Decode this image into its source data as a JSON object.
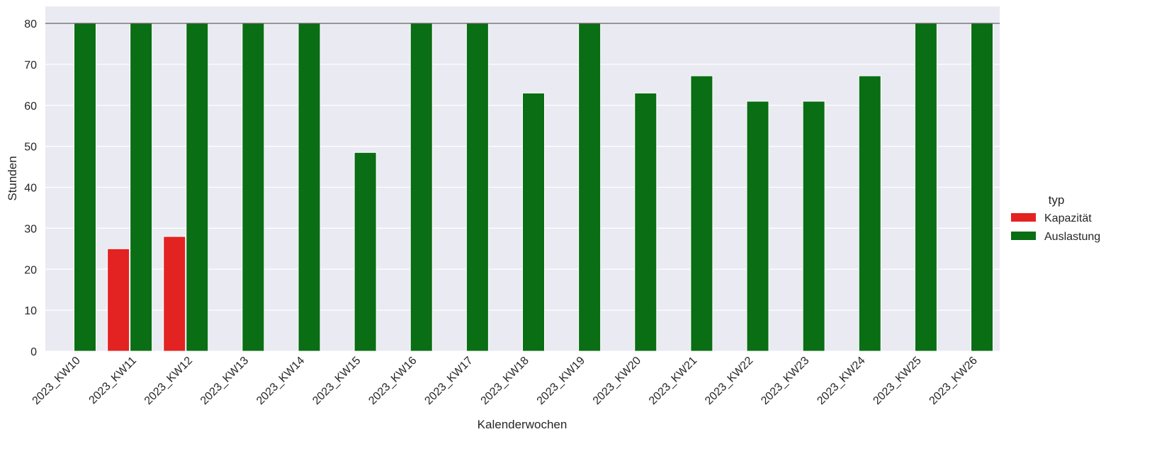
{
  "chart_data": {
    "type": "bar",
    "xlabel": "Kalenderwochen",
    "ylabel": "Stunden",
    "ylim": [
      0,
      84
    ],
    "yticks": [
      0,
      10,
      20,
      30,
      40,
      50,
      60,
      70,
      80
    ],
    "reference_line": 80,
    "grid": true,
    "legend": {
      "title": "typ",
      "placement": "right"
    },
    "categories": [
      "2023_KW10",
      "2023_KW11",
      "2023_KW12",
      "2023_KW13",
      "2023_KW14",
      "2023_KW15",
      "2023_KW16",
      "2023_KW17",
      "2023_KW18",
      "2023_KW19",
      "2023_KW20",
      "2023_KW21",
      "2023_KW22",
      "2023_KW23",
      "2023_KW24",
      "2023_KW25",
      "2023_KW26"
    ],
    "series": [
      {
        "name": "Kapazität",
        "color": "#e32222",
        "values": [
          null,
          25,
          28,
          null,
          null,
          null,
          null,
          null,
          null,
          null,
          null,
          null,
          null,
          null,
          null,
          null,
          null
        ]
      },
      {
        "name": "Auslastung",
        "color": "#0a6e14",
        "values": [
          80,
          80,
          80,
          80,
          80,
          48.5,
          80,
          80,
          63,
          80,
          63,
          67.2,
          61,
          61,
          67.2,
          80,
          80
        ]
      }
    ]
  }
}
